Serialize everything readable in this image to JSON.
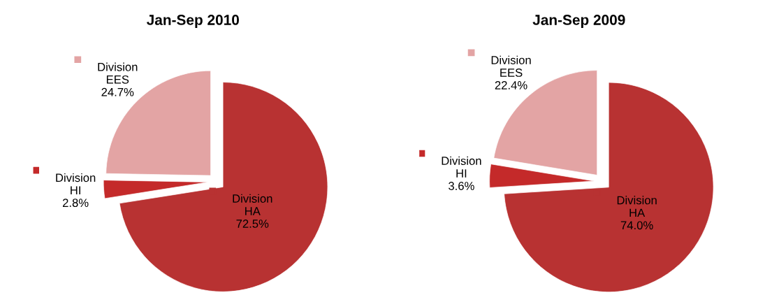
{
  "chart_data": [
    {
      "type": "pie",
      "title": "Jan-Sep 2010",
      "categories": [
        "Division HA",
        "Division HI",
        "Division EES"
      ],
      "values": [
        72.5,
        2.8,
        24.7
      ],
      "colors": [
        "#b83232",
        "#c42a2a",
        "#e3a4a4"
      ],
      "value_labels": [
        "72.5%",
        "2.8%",
        "24.7%"
      ]
    },
    {
      "type": "pie",
      "title": "Jan-Sep 2009",
      "categories": [
        "Division HA",
        "Division HI",
        "Division EES"
      ],
      "values": [
        74.0,
        3.6,
        22.4
      ],
      "colors": [
        "#b83232",
        "#c42a2a",
        "#e3a4a4"
      ],
      "value_labels": [
        "74.0%",
        "3.6%",
        "22.4%"
      ]
    }
  ]
}
